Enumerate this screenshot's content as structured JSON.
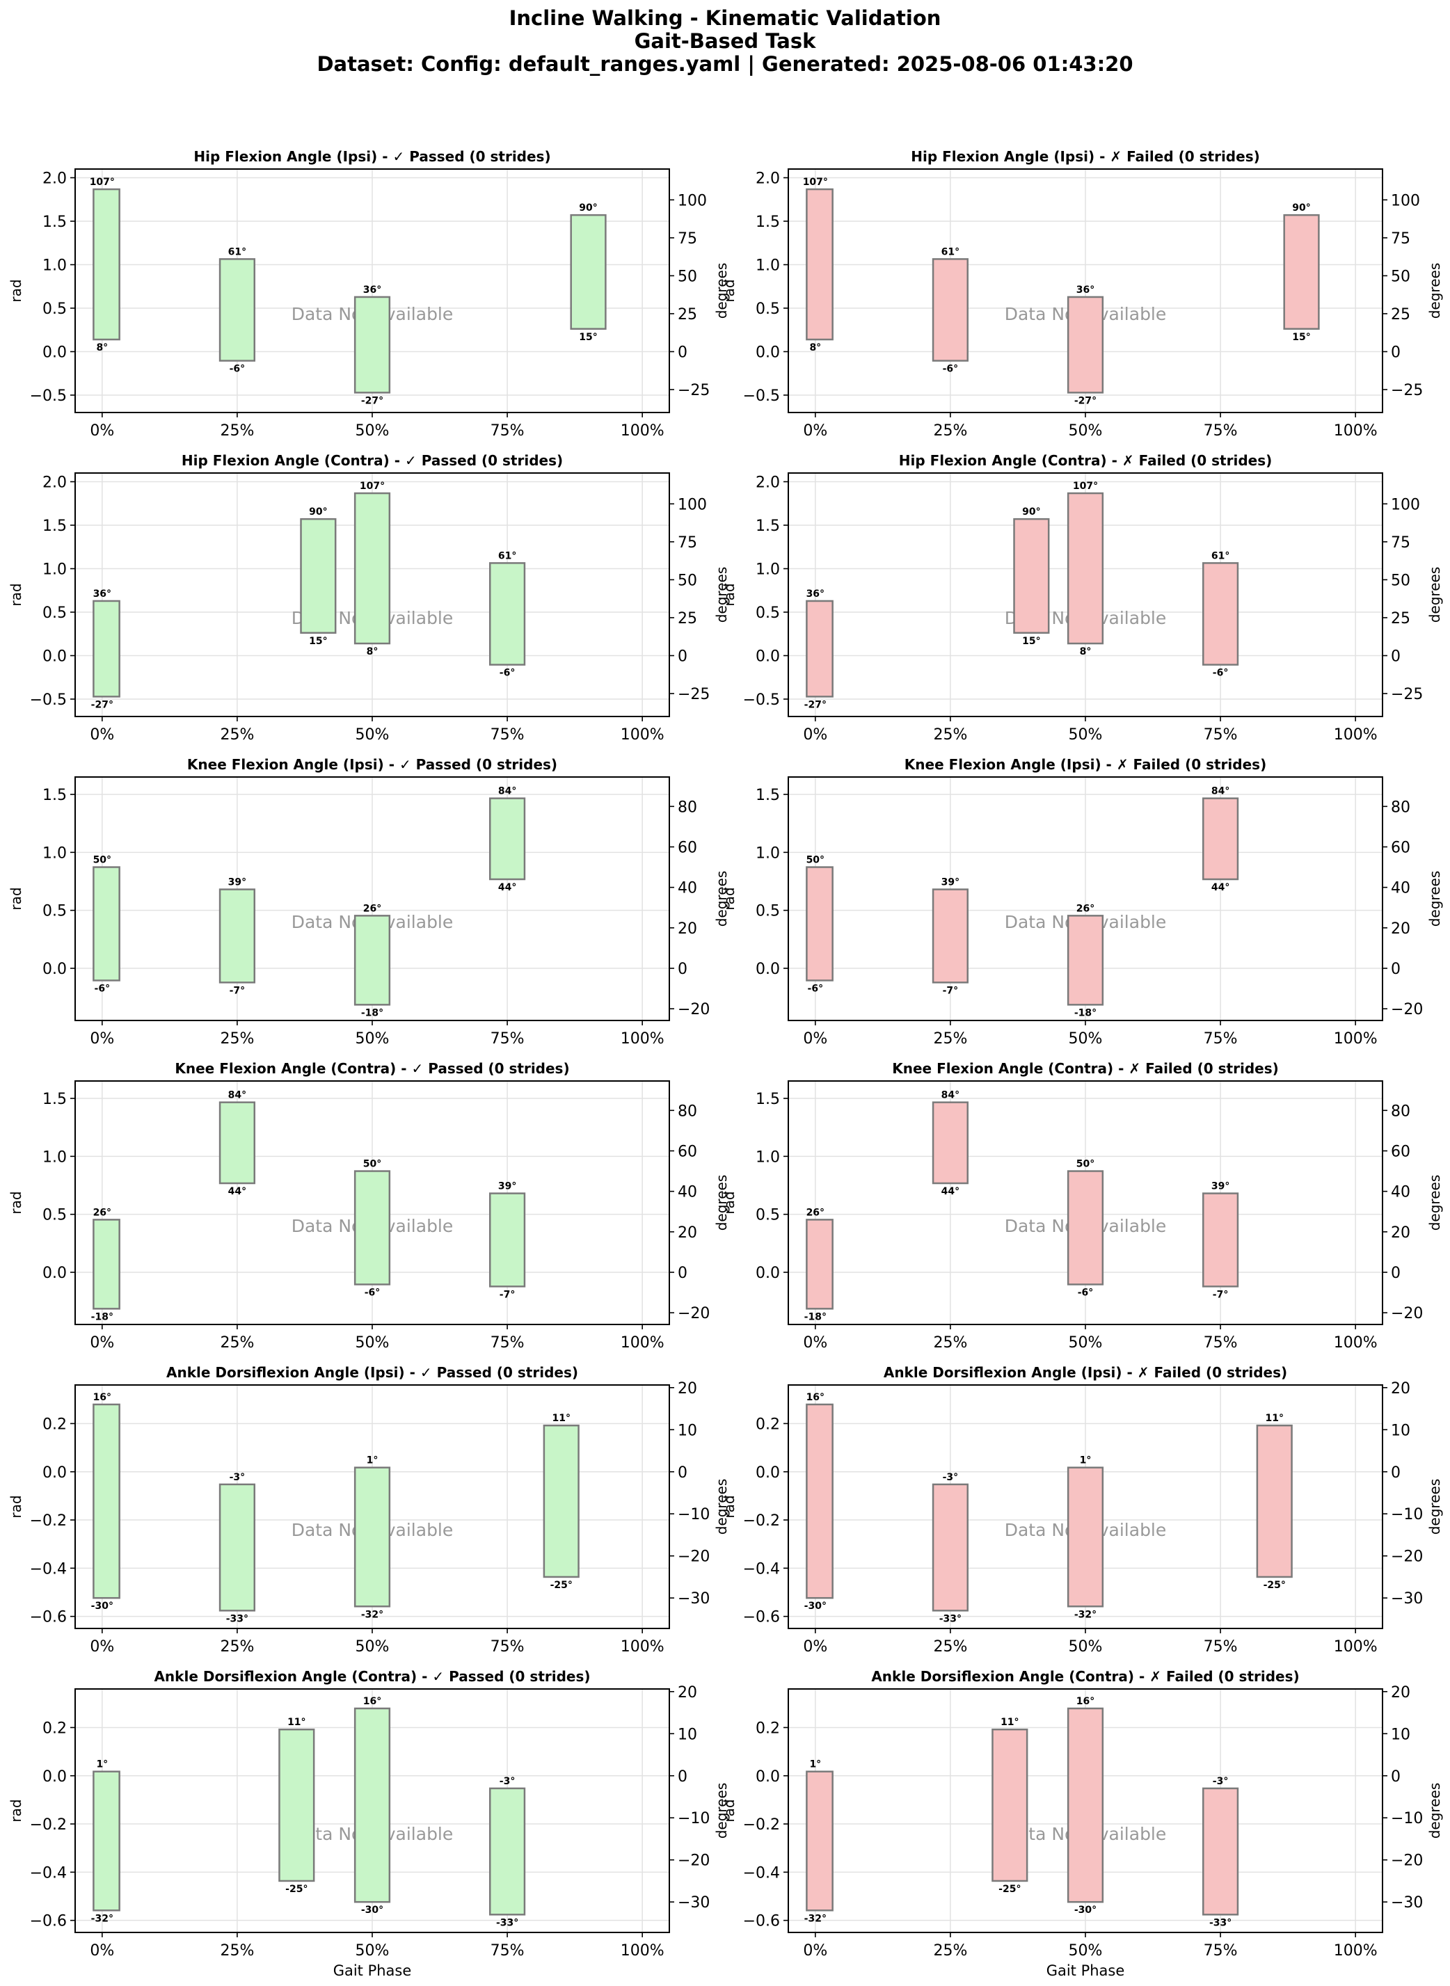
{
  "figure": {
    "title_line1": "Incline Walking - Kinematic Validation",
    "title_line2": "Gait-Based Task",
    "title_line3": "Dataset: Config: default_ranges.yaml | Generated: 2025-08-06 01:43:20"
  },
  "colors": {
    "passed_fill": "#c8f5c8",
    "failed_fill": "#f7c2c2",
    "box_edge": "#7a7a7a",
    "grid": "#e2e2e2",
    "na_text": "#999999"
  },
  "common": {
    "xlabel": "Gait Phase",
    "ylabel_left": "rad",
    "ylabel_right": "degrees",
    "no_data_text": "Data Not Available",
    "x_ticks": [
      0,
      25,
      50,
      75,
      100
    ],
    "x_tick_labels": [
      "0%",
      "25%",
      "50%",
      "75%",
      "100%"
    ]
  },
  "chart_data": [
    {
      "type": "bar",
      "title": "Hip Flexion Angle (Ipsi) - ✓ Passed (0 strides)",
      "status": "passed",
      "ylim": [
        -0.7,
        2.1
      ],
      "yticks": [
        -0.5,
        0.0,
        0.5,
        1.0,
        1.5,
        2.0
      ],
      "y_tick_labels": [
        "−0.5",
        "0.0",
        "0.5",
        "1.0",
        "1.5",
        "2.0"
      ],
      "deg_ticks": [
        -25,
        0,
        25,
        50,
        75,
        100
      ],
      "deg_tick_labels": [
        "−25",
        "0",
        "25",
        "50",
        "75",
        "100"
      ],
      "boxes": [
        {
          "phase": 0,
          "min": 8,
          "max": 107,
          "min_label": "8°",
          "max_label": "107°"
        },
        {
          "phase": 25,
          "min": -6,
          "max": 61,
          "min_label": "-6°",
          "max_label": "61°"
        },
        {
          "phase": 50,
          "min": -27,
          "max": 36,
          "min_label": "-27°",
          "max_label": "36°"
        },
        {
          "phase": 90,
          "min": 15,
          "max": 90,
          "min_label": "15°",
          "max_label": "90°"
        }
      ]
    },
    {
      "type": "bar",
      "title": "Hip Flexion Angle (Ipsi) - ✗ Failed (0 strides)",
      "status": "failed",
      "ylim": [
        -0.7,
        2.1
      ],
      "yticks": [
        -0.5,
        0.0,
        0.5,
        1.0,
        1.5,
        2.0
      ],
      "y_tick_labels": [
        "−0.5",
        "0.0",
        "0.5",
        "1.0",
        "1.5",
        "2.0"
      ],
      "deg_ticks": [
        -25,
        0,
        25,
        50,
        75,
        100
      ],
      "deg_tick_labels": [
        "−25",
        "0",
        "25",
        "50",
        "75",
        "100"
      ],
      "boxes": [
        {
          "phase": 0,
          "min": 8,
          "max": 107,
          "min_label": "8°",
          "max_label": "107°"
        },
        {
          "phase": 25,
          "min": -6,
          "max": 61,
          "min_label": "-6°",
          "max_label": "61°"
        },
        {
          "phase": 50,
          "min": -27,
          "max": 36,
          "min_label": "-27°",
          "max_label": "36°"
        },
        {
          "phase": 90,
          "min": 15,
          "max": 90,
          "min_label": "15°",
          "max_label": "90°"
        }
      ]
    },
    {
      "type": "bar",
      "title": "Hip Flexion Angle (Contra) - ✓ Passed (0 strides)",
      "status": "passed",
      "ylim": [
        -0.7,
        2.1
      ],
      "yticks": [
        -0.5,
        0.0,
        0.5,
        1.0,
        1.5,
        2.0
      ],
      "y_tick_labels": [
        "−0.5",
        "0.0",
        "0.5",
        "1.0",
        "1.5",
        "2.0"
      ],
      "deg_ticks": [
        -25,
        0,
        25,
        50,
        75,
        100
      ],
      "deg_tick_labels": [
        "−25",
        "0",
        "25",
        "50",
        "75",
        "100"
      ],
      "boxes": [
        {
          "phase": 0,
          "min": -27,
          "max": 36,
          "min_label": "-27°",
          "max_label": "36°"
        },
        {
          "phase": 40,
          "min": 15,
          "max": 90,
          "min_label": "15°",
          "max_label": "90°"
        },
        {
          "phase": 50,
          "min": 8,
          "max": 107,
          "min_label": "8°",
          "max_label": "107°"
        },
        {
          "phase": 75,
          "min": -6,
          "max": 61,
          "min_label": "-6°",
          "max_label": "61°"
        }
      ]
    },
    {
      "type": "bar",
      "title": "Hip Flexion Angle (Contra) - ✗ Failed (0 strides)",
      "status": "failed",
      "ylim": [
        -0.7,
        2.1
      ],
      "yticks": [
        -0.5,
        0.0,
        0.5,
        1.0,
        1.5,
        2.0
      ],
      "y_tick_labels": [
        "−0.5",
        "0.0",
        "0.5",
        "1.0",
        "1.5",
        "2.0"
      ],
      "deg_ticks": [
        -25,
        0,
        25,
        50,
        75,
        100
      ],
      "deg_tick_labels": [
        "−25",
        "0",
        "25",
        "50",
        "75",
        "100"
      ],
      "boxes": [
        {
          "phase": 0,
          "min": -27,
          "max": 36,
          "min_label": "-27°",
          "max_label": "36°"
        },
        {
          "phase": 40,
          "min": 15,
          "max": 90,
          "min_label": "15°",
          "max_label": "90°"
        },
        {
          "phase": 50,
          "min": 8,
          "max": 107,
          "min_label": "8°",
          "max_label": "107°"
        },
        {
          "phase": 75,
          "min": -6,
          "max": 61,
          "min_label": "-6°",
          "max_label": "61°"
        }
      ]
    },
    {
      "type": "bar",
      "title": "Knee Flexion Angle (Ipsi) - ✓ Passed (0 strides)",
      "status": "passed",
      "ylim": [
        -0.45,
        1.65
      ],
      "yticks": [
        0.0,
        0.5,
        1.0,
        1.5
      ],
      "y_tick_labels": [
        "0.0",
        "0.5",
        "1.0",
        "1.5"
      ],
      "deg_ticks": [
        -20,
        0,
        20,
        40,
        60,
        80
      ],
      "deg_tick_labels": [
        "−20",
        "0",
        "20",
        "40",
        "60",
        "80"
      ],
      "boxes": [
        {
          "phase": 0,
          "min": -6,
          "max": 50,
          "min_label": "-6°",
          "max_label": "50°"
        },
        {
          "phase": 25,
          "min": -7,
          "max": 39,
          "min_label": "-7°",
          "max_label": "39°"
        },
        {
          "phase": 50,
          "min": -18,
          "max": 26,
          "min_label": "-18°",
          "max_label": "26°"
        },
        {
          "phase": 75,
          "min": 44,
          "max": 84,
          "min_label": "44°",
          "max_label": "84°"
        }
      ]
    },
    {
      "type": "bar",
      "title": "Knee Flexion Angle (Ipsi) - ✗ Failed (0 strides)",
      "status": "failed",
      "ylim": [
        -0.45,
        1.65
      ],
      "yticks": [
        0.0,
        0.5,
        1.0,
        1.5
      ],
      "y_tick_labels": [
        "0.0",
        "0.5",
        "1.0",
        "1.5"
      ],
      "deg_ticks": [
        -20,
        0,
        20,
        40,
        60,
        80
      ],
      "deg_tick_labels": [
        "−20",
        "0",
        "20",
        "40",
        "60",
        "80"
      ],
      "boxes": [
        {
          "phase": 0,
          "min": -6,
          "max": 50,
          "min_label": "-6°",
          "max_label": "50°"
        },
        {
          "phase": 25,
          "min": -7,
          "max": 39,
          "min_label": "-7°",
          "max_label": "39°"
        },
        {
          "phase": 50,
          "min": -18,
          "max": 26,
          "min_label": "-18°",
          "max_label": "26°"
        },
        {
          "phase": 75,
          "min": 44,
          "max": 84,
          "min_label": "44°",
          "max_label": "84°"
        }
      ]
    },
    {
      "type": "bar",
      "title": "Knee Flexion Angle (Contra) - ✓ Passed (0 strides)",
      "status": "passed",
      "ylim": [
        -0.45,
        1.65
      ],
      "yticks": [
        0.0,
        0.5,
        1.0,
        1.5
      ],
      "y_tick_labels": [
        "0.0",
        "0.5",
        "1.0",
        "1.5"
      ],
      "deg_ticks": [
        -20,
        0,
        20,
        40,
        60,
        80
      ],
      "deg_tick_labels": [
        "−20",
        "0",
        "20",
        "40",
        "60",
        "80"
      ],
      "boxes": [
        {
          "phase": 0,
          "min": -18,
          "max": 26,
          "min_label": "-18°",
          "max_label": "26°"
        },
        {
          "phase": 25,
          "min": 44,
          "max": 84,
          "min_label": "44°",
          "max_label": "84°"
        },
        {
          "phase": 50,
          "min": -6,
          "max": 50,
          "min_label": "-6°",
          "max_label": "50°"
        },
        {
          "phase": 75,
          "min": -7,
          "max": 39,
          "min_label": "-7°",
          "max_label": "39°"
        }
      ]
    },
    {
      "type": "bar",
      "title": "Knee Flexion Angle (Contra) - ✗ Failed (0 strides)",
      "status": "failed",
      "ylim": [
        -0.45,
        1.65
      ],
      "yticks": [
        0.0,
        0.5,
        1.0,
        1.5
      ],
      "y_tick_labels": [
        "0.0",
        "0.5",
        "1.0",
        "1.5"
      ],
      "deg_ticks": [
        -20,
        0,
        20,
        40,
        60,
        80
      ],
      "deg_tick_labels": [
        "−20",
        "0",
        "20",
        "40",
        "60",
        "80"
      ],
      "boxes": [
        {
          "phase": 0,
          "min": -18,
          "max": 26,
          "min_label": "-18°",
          "max_label": "26°"
        },
        {
          "phase": 25,
          "min": 44,
          "max": 84,
          "min_label": "44°",
          "max_label": "84°"
        },
        {
          "phase": 50,
          "min": -6,
          "max": 50,
          "min_label": "-6°",
          "max_label": "50°"
        },
        {
          "phase": 75,
          "min": -7,
          "max": 39,
          "min_label": "-7°",
          "max_label": "39°"
        }
      ]
    },
    {
      "type": "bar",
      "title": "Ankle Dorsiflexion Angle (Ipsi) - ✓ Passed (0 strides)",
      "status": "passed",
      "ylim": [
        -0.65,
        0.36
      ],
      "yticks": [
        -0.6,
        -0.4,
        -0.2,
        0.0,
        0.2
      ],
      "y_tick_labels": [
        "−0.6",
        "−0.4",
        "−0.2",
        "0.0",
        "0.2"
      ],
      "deg_ticks": [
        -30,
        -20,
        -10,
        0,
        10,
        20
      ],
      "deg_tick_labels": [
        "−30",
        "−20",
        "−10",
        "0",
        "10",
        "20"
      ],
      "boxes": [
        {
          "phase": 0,
          "min": -30,
          "max": 16,
          "min_label": "-30°",
          "max_label": "16°"
        },
        {
          "phase": 25,
          "min": -33,
          "max": -3,
          "min_label": "-33°",
          "max_label": "-3°"
        },
        {
          "phase": 50,
          "min": -32,
          "max": 1,
          "min_label": "-32°",
          "max_label": "1°"
        },
        {
          "phase": 85,
          "min": -25,
          "max": 11,
          "min_label": "-25°",
          "max_label": "11°"
        }
      ]
    },
    {
      "type": "bar",
      "title": "Ankle Dorsiflexion Angle (Ipsi) - ✗ Failed (0 strides)",
      "status": "failed",
      "ylim": [
        -0.65,
        0.36
      ],
      "yticks": [
        -0.6,
        -0.4,
        -0.2,
        0.0,
        0.2
      ],
      "y_tick_labels": [
        "−0.6",
        "−0.4",
        "−0.2",
        "0.0",
        "0.2"
      ],
      "deg_ticks": [
        -30,
        -20,
        -10,
        0,
        10,
        20
      ],
      "deg_tick_labels": [
        "−30",
        "−20",
        "−10",
        "0",
        "10",
        "20"
      ],
      "boxes": [
        {
          "phase": 0,
          "min": -30,
          "max": 16,
          "min_label": "-30°",
          "max_label": "16°"
        },
        {
          "phase": 25,
          "min": -33,
          "max": -3,
          "min_label": "-33°",
          "max_label": "-3°"
        },
        {
          "phase": 50,
          "min": -32,
          "max": 1,
          "min_label": "-32°",
          "max_label": "1°"
        },
        {
          "phase": 85,
          "min": -25,
          "max": 11,
          "min_label": "-25°",
          "max_label": "11°"
        }
      ]
    },
    {
      "type": "bar",
      "title": "Ankle Dorsiflexion Angle (Contra) - ✓ Passed (0 strides)",
      "status": "passed",
      "ylim": [
        -0.65,
        0.36
      ],
      "yticks": [
        -0.6,
        -0.4,
        -0.2,
        0.0,
        0.2
      ],
      "y_tick_labels": [
        "−0.6",
        "−0.4",
        "−0.2",
        "0.0",
        "0.2"
      ],
      "deg_ticks": [
        -30,
        -20,
        -10,
        0,
        10,
        20
      ],
      "deg_tick_labels": [
        "−30",
        "−20",
        "−10",
        "0",
        "10",
        "20"
      ],
      "boxes": [
        {
          "phase": 0,
          "min": -32,
          "max": 1,
          "min_label": "-32°",
          "max_label": "1°"
        },
        {
          "phase": 36,
          "min": -25,
          "max": 11,
          "min_label": "-25°",
          "max_label": "11°"
        },
        {
          "phase": 50,
          "min": -30,
          "max": 16,
          "min_label": "-30°",
          "max_label": "16°"
        },
        {
          "phase": 75,
          "min": -33,
          "max": -3,
          "min_label": "-33°",
          "max_label": "-3°"
        }
      ]
    },
    {
      "type": "bar",
      "title": "Ankle Dorsiflexion Angle (Contra) - ✗ Failed (0 strides)",
      "status": "failed",
      "ylim": [
        -0.65,
        0.36
      ],
      "yticks": [
        -0.6,
        -0.4,
        -0.2,
        0.0,
        0.2
      ],
      "y_tick_labels": [
        "−0.6",
        "−0.4",
        "−0.2",
        "0.0",
        "0.2"
      ],
      "deg_ticks": [
        -30,
        -20,
        -10,
        0,
        10,
        20
      ],
      "deg_tick_labels": [
        "−30",
        "−20",
        "−10",
        "0",
        "10",
        "20"
      ],
      "boxes": [
        {
          "phase": 0,
          "min": -32,
          "max": 1,
          "min_label": "-32°",
          "max_label": "1°"
        },
        {
          "phase": 36,
          "min": -25,
          "max": 11,
          "min_label": "-25°",
          "max_label": "11°"
        },
        {
          "phase": 50,
          "min": -30,
          "max": 16,
          "min_label": "-30°",
          "max_label": "16°"
        },
        {
          "phase": 75,
          "min": -33,
          "max": -3,
          "min_label": "-33°",
          "max_label": "-3°"
        }
      ]
    }
  ]
}
